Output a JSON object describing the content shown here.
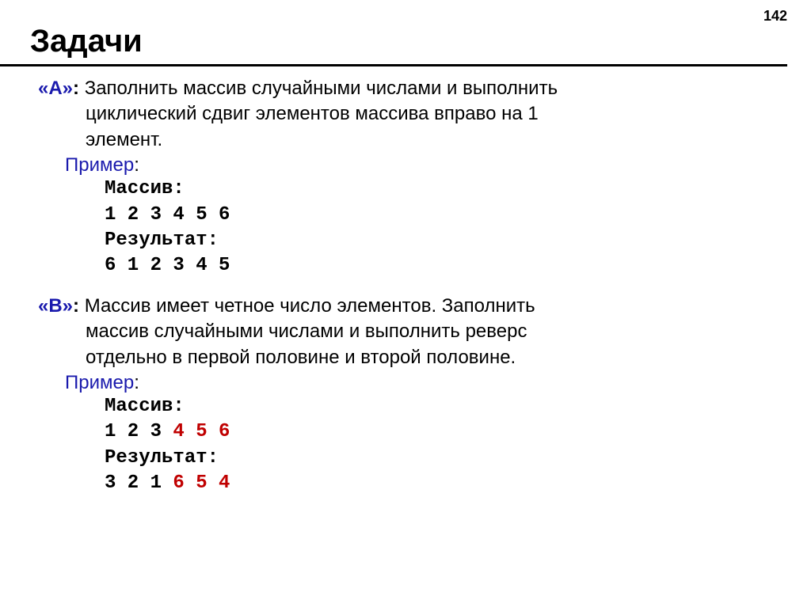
{
  "page_number": "142",
  "title": "Задачи",
  "colors": {
    "label_blue": "#1a1aad",
    "code_red": "#c00000",
    "text_black": "#000000",
    "background": "#ffffff"
  },
  "tasks": [
    {
      "label": "«А»",
      "colon": ":",
      "text_line1": " Заполнить массив случайными числами и выполнить",
      "text_line2": "циклический сдвиг элементов массива вправо на 1",
      "text_line3": "элемент.",
      "example_label": "Пример",
      "example_colon": ":",
      "mono1": "Массив:",
      "mono2": "1 2 3 4 5 6",
      "mono3": "Результат:",
      "mono4": "6 1 2 3 4 5"
    },
    {
      "label": "«В»",
      "colon": ":",
      "text_line1": " Массив имеет четное число элементов. Заполнить",
      "text_line2": "массив случайными числами и выполнить реверс",
      "text_line3": "отдельно в первой половине и второй половине.",
      "example_label": "Пример",
      "example_colon": ":",
      "mono1": "Массив:",
      "mono2_black": "1 2 3 ",
      "mono2_red": "4 5 6",
      "mono3": "Результат:",
      "mono4_black": "3 2 1 ",
      "mono4_red": "6 5 4"
    }
  ]
}
